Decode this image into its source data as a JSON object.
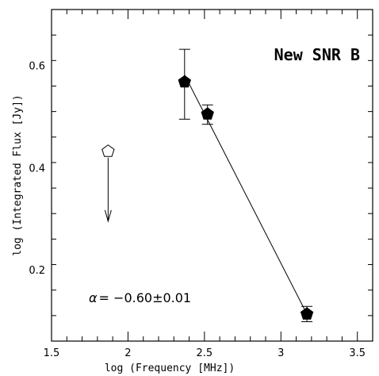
{
  "chart_data": {
    "type": "scatter",
    "title": "New SNR B",
    "xlabel": "log (Frequency [MHz])",
    "ylabel": "log (Integrated Flux [Jy])",
    "xlim": [
      1.5,
      3.6
    ],
    "ylim": [
      0.06,
      0.71
    ],
    "x_ticks": [
      "1.5",
      "2",
      "2.5",
      "3",
      "3.5"
    ],
    "y_ticks": [
      "0.2",
      "0.4",
      "0.6"
    ],
    "series": [
      {
        "marker": "filled-pentagon",
        "points": [
          {
            "x": 2.37,
            "y": 0.568,
            "yerr_low": 0.495,
            "yerr_high": 0.632
          },
          {
            "x": 2.52,
            "y": 0.505,
            "yerr_low": 0.485,
            "yerr_high": 0.523
          },
          {
            "x": 3.17,
            "y": 0.113,
            "yerr_low": 0.098,
            "yerr_high": 0.128
          }
        ]
      },
      {
        "marker": "open-pentagon",
        "upper_limit": true,
        "points": [
          {
            "x": 1.87,
            "y": 0.432,
            "arrow_to": 0.295
          }
        ]
      }
    ],
    "fit_line": {
      "x_from": 2.37,
      "x_to": 3.17,
      "y_from": 0.582,
      "y_to": 0.113
    },
    "annotation": {
      "symbol": "α",
      "text": "= −0.60±0.01"
    },
    "grid": false,
    "colors": {
      "marker": "#000000",
      "axis": "#000000",
      "background": "#ffffff"
    }
  }
}
